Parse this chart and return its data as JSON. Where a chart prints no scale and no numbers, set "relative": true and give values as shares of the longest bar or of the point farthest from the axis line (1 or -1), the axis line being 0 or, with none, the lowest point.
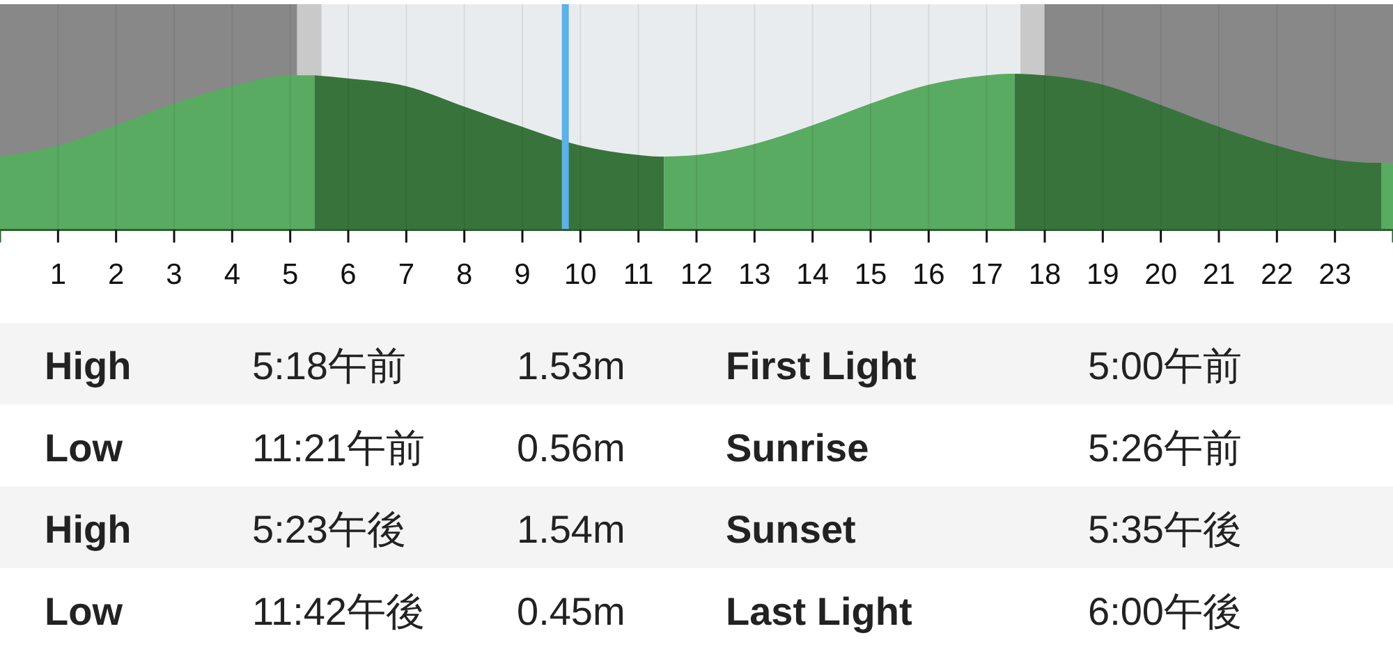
{
  "chart_data": [
    {
      "type": "area",
      "relative": true,
      "xlim": [
        0,
        24
      ],
      "xticks": [
        1,
        2,
        3,
        4,
        5,
        6,
        7,
        8,
        9,
        10,
        11,
        12,
        13,
        14,
        15,
        16,
        17,
        18,
        19,
        20,
        21,
        22,
        23
      ],
      "grid": "x",
      "series": [
        {
          "color": "#59ab61",
          "x": [
            0,
            1,
            2,
            3,
            4,
            5,
            5.3,
            5.42
          ],
          "values": [
            0.47,
            0.54,
            0.67,
            0.81,
            0.92,
            0.99,
            0.99,
            0.99
          ]
        },
        {
          "color": "#38733c",
          "x": [
            5.42,
            6,
            7,
            8,
            9,
            10,
            11,
            11.35,
            11.44
          ],
          "values": [
            0.99,
            0.97,
            0.92,
            0.79,
            0.66,
            0.54,
            0.48,
            0.47,
            0.47
          ]
        },
        {
          "color": "#59ab61",
          "x": [
            11.44,
            12,
            13,
            14,
            15,
            16,
            17,
            17.4,
            17.48
          ],
          "values": [
            0.47,
            0.48,
            0.55,
            0.67,
            0.81,
            0.93,
            0.99,
            1,
            1
          ]
        },
        {
          "color": "#38733c",
          "x": [
            17.48,
            18,
            19,
            20,
            21,
            22,
            23,
            23.7,
            23.8
          ],
          "values": [
            1,
            0.99,
            0.93,
            0.8,
            0.66,
            0.54,
            0.45,
            0.43,
            0.43
          ]
        },
        {
          "color": "#59ab61",
          "x": [
            23.8,
            24
          ],
          "values": [
            0.43,
            0.43
          ]
        }
      ],
      "bands": [
        {
          "axis": "x",
          "from": 0,
          "to": 5.12,
          "color": "#888888"
        },
        {
          "axis": "x",
          "from": 5.12,
          "to": 5.54,
          "color": "#c9c9c9"
        },
        {
          "axis": "x",
          "from": 17.58,
          "to": 18,
          "color": "#c9c9c9"
        },
        {
          "axis": "x",
          "from": 18,
          "to": 24,
          "color": "#888888"
        }
      ],
      "ref_lines": [
        {
          "axis": "x",
          "value": 9.74,
          "color": "#5db1e6"
        }
      ]
    },
    {
      "type": "other",
      "annotations": [
        "High",
        "5:18午前",
        "1.53m",
        "First Light",
        "5:00午前",
        "Low",
        "11:21午前",
        "0.56m",
        "Sunrise",
        "5:26午前",
        "High",
        "5:23午後",
        "1.54m",
        "Sunset",
        "5:35午後",
        "Low",
        "11:42午後",
        "0.45m",
        "Last Light",
        "6:00午後"
      ]
    }
  ]
}
